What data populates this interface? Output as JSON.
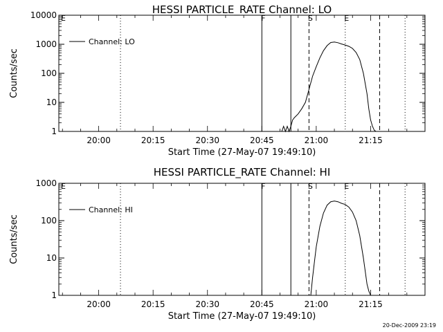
{
  "footer_timestamp": "20-Dec-2009 23:19",
  "chart_data": [
    {
      "type": "line",
      "title": "HESSI PARTICLE_RATE Channel: LO",
      "xlabel": "Start Time (27-May-07 19:49:10)",
      "ylabel": "Counts/sec",
      "yscale": "log",
      "ylim": [
        1,
        10000
      ],
      "yticks": [
        {
          "v": 1,
          "label": "1"
        },
        {
          "v": 10,
          "label": "10"
        },
        {
          "v": 100,
          "label": "100"
        },
        {
          "v": 1000,
          "label": "1000"
        },
        {
          "v": 10000,
          "label": "10000"
        }
      ],
      "xlim": [
        "19:49",
        "21:30"
      ],
      "xticks": [
        "20:00",
        "20:15",
        "20:30",
        "20:45",
        "21:00",
        "21:15"
      ],
      "legend": {
        "position": "top-left",
        "entries": [
          "Channel: LO"
        ]
      },
      "markers": [
        {
          "time": "19:49",
          "label": "E",
          "style": "none"
        },
        {
          "time": "20:06",
          "label": "",
          "style": "dotted"
        },
        {
          "time": "20:45",
          "label": "F",
          "style": "solid"
        },
        {
          "time": "20:53",
          "label": "",
          "style": "solid"
        },
        {
          "time": "20:58",
          "label": "S",
          "style": "dashed"
        },
        {
          "time": "21:08",
          "label": "E",
          "style": "dotted"
        },
        {
          "time": "21:17.5",
          "label": "",
          "style": "dashed"
        },
        {
          "time": "21:24.5",
          "label": "",
          "style": "dotted"
        }
      ],
      "series": [
        {
          "x": [
            "20:50.5",
            "20:51",
            "20:51.5",
            "20:52",
            "20:52.5",
            "20:53",
            "20:53.5",
            "20:54",
            "20:55",
            "20:56",
            "20:57",
            "20:58",
            "20:59",
            "21:00",
            "21:01",
            "21:02",
            "21:03",
            "21:04",
            "21:05",
            "21:06",
            "21:07",
            "21:08",
            "21:09",
            "21:10",
            "21:11",
            "21:12",
            "21:13",
            "21:14",
            "21:14.5",
            "21:15",
            "21:15.5",
            "21:16",
            "21:16.5",
            "21:17"
          ],
          "y": [
            1,
            1.5,
            1,
            1.5,
            1,
            1.5,
            2.5,
            3,
            4,
            6,
            10,
            28,
            80,
            170,
            340,
            600,
            900,
            1150,
            1200,
            1130,
            1020,
            940,
            850,
            720,
            520,
            300,
            100,
            20,
            6,
            2.5,
            1.5,
            1.1,
            1,
            1
          ]
        }
      ]
    },
    {
      "type": "line",
      "title": "HESSI PARTICLE_RATE Channel: HI",
      "xlabel": "Start Time (27-May-07 19:49:10)",
      "ylabel": "Counts/sec",
      "yscale": "log",
      "ylim": [
        1,
        1000
      ],
      "yticks": [
        {
          "v": 1,
          "label": "1"
        },
        {
          "v": 10,
          "label": "10"
        },
        {
          "v": 100,
          "label": "100"
        },
        {
          "v": 1000,
          "label": "1000"
        }
      ],
      "xlim": [
        "19:49",
        "21:30"
      ],
      "xticks": [
        "20:00",
        "20:15",
        "20:30",
        "20:45",
        "21:00",
        "21:15"
      ],
      "legend": {
        "position": "top-left",
        "entries": [
          "Channel: HI"
        ]
      },
      "markers": [
        {
          "time": "19:49",
          "label": "E",
          "style": "none"
        },
        {
          "time": "20:06",
          "label": "",
          "style": "dotted"
        },
        {
          "time": "20:45",
          "label": "F",
          "style": "solid"
        },
        {
          "time": "20:53",
          "label": "",
          "style": "solid"
        },
        {
          "time": "20:58",
          "label": "S",
          "style": "dashed"
        },
        {
          "time": "21:08",
          "label": "E",
          "style": "dotted"
        },
        {
          "time": "21:17.5",
          "label": "",
          "style": "dashed"
        },
        {
          "time": "21:24.5",
          "label": "",
          "style": "dotted"
        }
      ],
      "series": [
        {
          "x": [
            "20:58.5",
            "20:59",
            "20:59.5",
            "21:00",
            "21:01",
            "21:02",
            "21:03",
            "21:04",
            "21:05",
            "21:06",
            "21:07",
            "21:08",
            "21:09",
            "21:10",
            "21:11",
            "21:12",
            "21:13",
            "21:14",
            "21:14.5",
            "21:15",
            "21:15.5"
          ],
          "y": [
            1,
            3,
            8,
            20,
            70,
            160,
            260,
            320,
            335,
            320,
            290,
            270,
            230,
            170,
            100,
            40,
            10,
            2,
            1.3,
            1,
            1
          ]
        }
      ]
    }
  ]
}
